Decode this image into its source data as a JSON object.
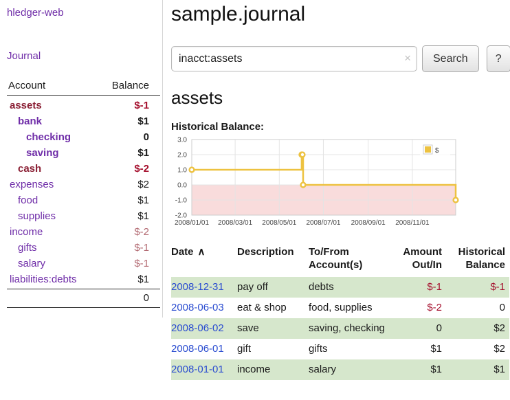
{
  "app": {
    "title": "hledger-web"
  },
  "colors": {
    "accent_purple": "#6f2da8",
    "negative_red": "#a50f2d",
    "negative_soft_red": "#b36a72",
    "maroon_account": "#8b2035",
    "row_green": "#d6e7cc",
    "date_link_blue": "#2a4cd0",
    "chart_line_gold": "#edc240",
    "chart_negative_region_pink": "#f9dcdc"
  },
  "sidebar": {
    "journal_link": "Journal",
    "accounts_header": {
      "account": "Account",
      "balance": "Balance"
    },
    "accounts": [
      {
        "name": "assets",
        "balance": "$-1",
        "indent": 0,
        "bold": true,
        "name_negative": true,
        "balance_negative": true
      },
      {
        "name": "bank",
        "balance": "$1",
        "indent": 1,
        "bold": true,
        "name_negative": false,
        "balance_negative": false
      },
      {
        "name": "checking",
        "balance": "0",
        "indent": 2,
        "bold": true,
        "name_negative": false,
        "balance_negative": false
      },
      {
        "name": "saving",
        "balance": "$1",
        "indent": 2,
        "bold": true,
        "name_negative": false,
        "balance_negative": false
      },
      {
        "name": "cash",
        "balance": "$-2",
        "indent": 1,
        "bold": true,
        "name_negative": true,
        "balance_negative": true
      },
      {
        "name": "expenses",
        "balance": "$2",
        "indent": 0,
        "bold": false,
        "name_negative": false,
        "balance_negative": false
      },
      {
        "name": "food",
        "balance": "$1",
        "indent": 1,
        "bold": false,
        "name_negative": false,
        "balance_negative": false
      },
      {
        "name": "supplies",
        "balance": "$1",
        "indent": 1,
        "bold": false,
        "name_negative": false,
        "balance_negative": false
      },
      {
        "name": "income",
        "balance": "$-2",
        "indent": 0,
        "bold": false,
        "name_negative": false,
        "balance_negative": true
      },
      {
        "name": "gifts",
        "balance": "$-1",
        "indent": 1,
        "bold": false,
        "name_negative": false,
        "balance_negative": true
      },
      {
        "name": "salary",
        "balance": "$-1",
        "indent": 1,
        "bold": false,
        "name_negative": false,
        "balance_negative": true
      },
      {
        "name": "liabilities:debts",
        "balance": "$1",
        "indent": 0,
        "bold": false,
        "name_negative": false,
        "balance_negative": false
      }
    ],
    "total": "0"
  },
  "main": {
    "title": "sample.journal",
    "search": {
      "value": "inacct:assets",
      "clear_icon": "×",
      "button": "Search",
      "help_button": "?"
    },
    "account_heading": "assets"
  },
  "chart_data": {
    "type": "line",
    "title": "Historical Balance:",
    "series": [
      {
        "name": "$",
        "color": "#edc240",
        "step": true,
        "points": [
          [
            "2008-01-01",
            1
          ],
          [
            "2008-06-01",
            2
          ],
          [
            "2008-06-02",
            2
          ],
          [
            "2008-06-03",
            0
          ],
          [
            "2008-12-31",
            -1
          ]
        ]
      }
    ],
    "xlabel": "",
    "ylabel": "",
    "ylim": [
      -2,
      3
    ],
    "yticks": [
      3,
      2,
      1,
      0,
      -1,
      -2
    ],
    "xticks": [
      "2008/01/01",
      "2008/03/01",
      "2008/05/01",
      "2008/07/01",
      "2008/09/01",
      "2008/11/01"
    ],
    "xrange": [
      "2008-01-01",
      "2008-12-31"
    ],
    "grid": true,
    "legend_position": "top-right",
    "negative_region_color": "#f9dcdc"
  },
  "register": {
    "columns": [
      {
        "key": "date",
        "label": "Date",
        "align": "left",
        "sort_indicator": "∧",
        "sortable": true
      },
      {
        "key": "description",
        "label": "Description",
        "align": "left"
      },
      {
        "key": "tofrom",
        "label": "To/From\nAccount(s)",
        "align": "left"
      },
      {
        "key": "amount",
        "label": "Amount\nOut/In",
        "align": "right"
      },
      {
        "key": "balance",
        "label": "Historical\nBalance",
        "align": "right"
      }
    ],
    "rows": [
      {
        "date": "2008-12-31",
        "description": "pay off",
        "accounts": "debts",
        "amount": "$-1",
        "balance": "$-1",
        "amount_negative": true,
        "balance_negative": true
      },
      {
        "date": "2008-06-03",
        "description": "eat & shop",
        "accounts": "food, supplies",
        "amount": "$-2",
        "balance": "0",
        "amount_negative": true,
        "balance_negative": false
      },
      {
        "date": "2008-06-02",
        "description": "save",
        "accounts": "saving, checking",
        "amount": "0",
        "balance": "$2",
        "amount_negative": false,
        "balance_negative": false
      },
      {
        "date": "2008-06-01",
        "description": "gift",
        "accounts": "gifts",
        "amount": "$1",
        "balance": "$2",
        "amount_negative": false,
        "balance_negative": false
      },
      {
        "date": "2008-01-01",
        "description": "income",
        "accounts": "salary",
        "amount": "$1",
        "balance": "$1",
        "amount_negative": false,
        "balance_negative": false
      }
    ]
  }
}
